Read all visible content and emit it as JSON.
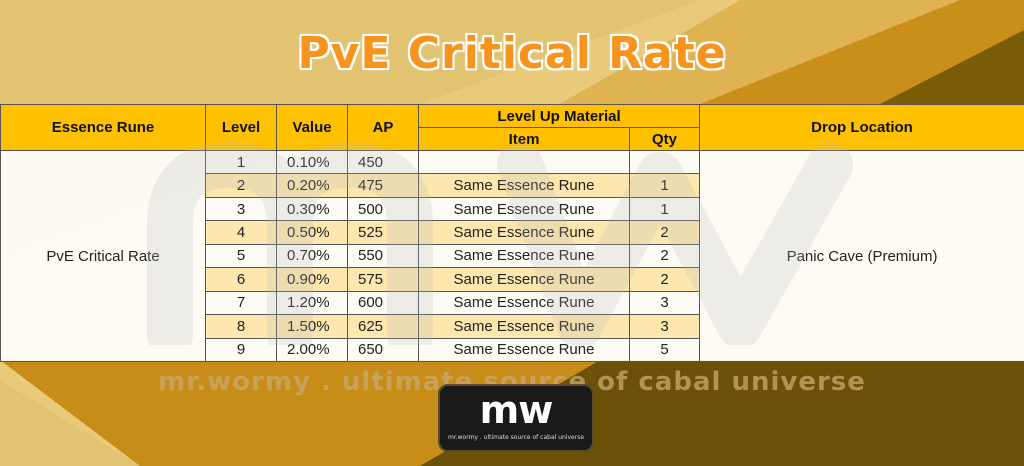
{
  "title": "PvE Critical Rate",
  "table": {
    "headers": {
      "essence_rune": "Essence Rune",
      "level": "Level",
      "value": "Value",
      "ap": "AP",
      "level_up_material": "Level Up Material",
      "item": "Item",
      "qty": "Qty",
      "drop_location": "Drop Location"
    },
    "rune_name": "PvE Critical Rate",
    "drop_location": "Panic Cave (Premium)",
    "rows": [
      {
        "level": "1",
        "value": "0.10%",
        "ap": "450",
        "item": "",
        "qty": ""
      },
      {
        "level": "2",
        "value": "0.20%",
        "ap": "475",
        "item": "Same Essence Rune",
        "qty": "1"
      },
      {
        "level": "3",
        "value": "0.30%",
        "ap": "500",
        "item": "Same Essence Rune",
        "qty": "1"
      },
      {
        "level": "4",
        "value": "0.50%",
        "ap": "525",
        "item": "Same Essence Rune",
        "qty": "2"
      },
      {
        "level": "5",
        "value": "0.70%",
        "ap": "550",
        "item": "Same Essence Rune",
        "qty": "2"
      },
      {
        "level": "6",
        "value": "0.90%",
        "ap": "575",
        "item": "Same Essence Rune",
        "qty": "2"
      },
      {
        "level": "7",
        "value": "1.20%",
        "ap": "600",
        "item": "Same Essence Rune",
        "qty": "3"
      },
      {
        "level": "8",
        "value": "1.50%",
        "ap": "625",
        "item": "Same Essence Rune",
        "qty": "3"
      },
      {
        "level": "9",
        "value": "2.00%",
        "ap": "650",
        "item": "Same Essence Rune",
        "qty": "5"
      }
    ]
  },
  "watermark": {
    "text": "mr.wormy . ultimate source of cabal universe",
    "logo_mark": "mw",
    "logo_sub": "mr.wormy . ultimate source of cabal universe"
  },
  "colors": {
    "header_bg": "#ffc000",
    "title": "#f7941d",
    "band": "#ffeab4",
    "bg_light": "#e9c97a",
    "bg_mid": "#c98f1a",
    "bg_dark": "#6b5208"
  }
}
